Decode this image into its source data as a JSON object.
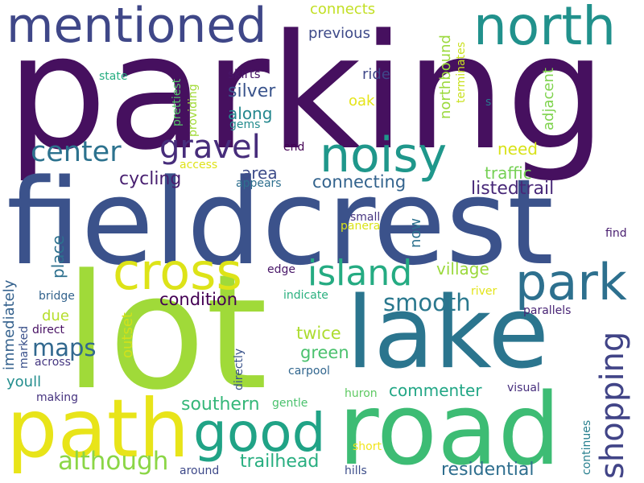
{
  "words": [
    {
      "text": "parking",
      "color": "#46105f"
    },
    {
      "text": "fieldcrest",
      "color": "#3b528b"
    },
    {
      "text": "lot",
      "color": "#a0da39"
    },
    {
      "text": "lake",
      "color": "#2b758e"
    },
    {
      "text": "road",
      "color": "#3dbc74"
    },
    {
      "text": "path",
      "color": "#e8e419"
    },
    {
      "text": "mentioned",
      "color": "#3f4788"
    },
    {
      "text": "north",
      "color": "#21918c"
    },
    {
      "text": "noisy",
      "color": "#1f978b"
    },
    {
      "text": "cross",
      "color": "#dde318"
    },
    {
      "text": "park",
      "color": "#2d708e"
    },
    {
      "text": "good",
      "color": "#20a386"
    },
    {
      "text": "island",
      "color": "#25ab82"
    },
    {
      "text": "gravel",
      "color": "#472d7b"
    },
    {
      "text": "center",
      "color": "#2c728e"
    },
    {
      "text": "shopping",
      "color": "#414487"
    },
    {
      "text": "although",
      "color": "#8bd646"
    },
    {
      "text": "smooth",
      "color": "#2a788e"
    },
    {
      "text": "maps",
      "color": "#31688e"
    },
    {
      "text": "southern",
      "color": "#35b779"
    },
    {
      "text": "trailhead",
      "color": "#28ae80"
    },
    {
      "text": "residential",
      "color": "#2e6e8e"
    },
    {
      "text": "commenter",
      "color": "#21a685"
    },
    {
      "text": "connecting",
      "color": "#33638d"
    },
    {
      "text": "listedtrail",
      "color": "#482878"
    },
    {
      "text": "condition",
      "color": "#440154"
    },
    {
      "text": "cycling",
      "color": "#481f70"
    },
    {
      "text": "twice",
      "color": "#addc30"
    },
    {
      "text": "green",
      "color": "#4ac16d"
    },
    {
      "text": "traffic",
      "color": "#75d054"
    },
    {
      "text": "need",
      "color": "#d8e219"
    },
    {
      "text": "area",
      "color": "#3e4c8a"
    },
    {
      "text": "village",
      "color": "#9bd93c"
    },
    {
      "text": "connects",
      "color": "#c2df23"
    },
    {
      "text": "previous",
      "color": "#3e4a89"
    },
    {
      "text": "ride",
      "color": "#3f4889"
    },
    {
      "text": "oak",
      "color": "#e5e419"
    },
    {
      "text": "silver",
      "color": "#3a548c"
    },
    {
      "text": "along",
      "color": "#24878e"
    },
    {
      "text": "skirts",
      "color": "#481467"
    },
    {
      "text": "state",
      "color": "#26ad81"
    },
    {
      "text": "gems",
      "color": "#228b8d"
    },
    {
      "text": "end",
      "color": "#440154"
    },
    {
      "text": "access",
      "color": "#dfe318"
    },
    {
      "text": "appears",
      "color": "#2e6f8e"
    },
    {
      "text": "small",
      "color": "#463480"
    },
    {
      "text": "panera",
      "color": "#dae319"
    },
    {
      "text": "find",
      "color": "#481d6f"
    },
    {
      "text": "edge",
      "color": "#481668"
    },
    {
      "text": "indicate",
      "color": "#2ab07f"
    },
    {
      "text": "river",
      "color": "#e2e418"
    },
    {
      "text": "parallels",
      "color": "#482475"
    },
    {
      "text": "bridge",
      "color": "#33638d"
    },
    {
      "text": "due",
      "color": "#b5de2b"
    },
    {
      "text": "direct",
      "color": "#471063"
    },
    {
      "text": "across",
      "color": "#453781"
    },
    {
      "text": "youll",
      "color": "#228d8d"
    },
    {
      "text": "making",
      "color": "#46337f"
    },
    {
      "text": "carpool",
      "color": "#31668e"
    },
    {
      "text": "gentle",
      "color": "#4ac16d"
    },
    {
      "text": "huron",
      "color": "#5ec962"
    },
    {
      "text": "visual",
      "color": "#472f7d"
    },
    {
      "text": "short",
      "color": "#f1e51d"
    },
    {
      "text": "hills",
      "color": "#3d4e8a"
    },
    {
      "text": "around",
      "color": "#3e4989"
    },
    {
      "text": "s",
      "color": "#29798e"
    },
    {
      "text": "northbound",
      "color": "#9bd93c"
    },
    {
      "text": "terminates",
      "color": "#cae11f"
    },
    {
      "text": "adjacent",
      "color": "#7fd34e"
    },
    {
      "text": "prettiest",
      "color": "#54c568"
    },
    {
      "text": "providing",
      "color": "#a2da37"
    },
    {
      "text": "now",
      "color": "#2c718e"
    },
    {
      "text": "place",
      "color": "#2d708e"
    },
    {
      "text": "immediately",
      "color": "#34618d"
    },
    {
      "text": "marked",
      "color": "#3b518b"
    },
    {
      "text": "outset",
      "color": "#d0e11c"
    },
    {
      "text": "directly",
      "color": "#3a538b"
    },
    {
      "text": "continues",
      "color": "#277f8e"
    }
  ]
}
